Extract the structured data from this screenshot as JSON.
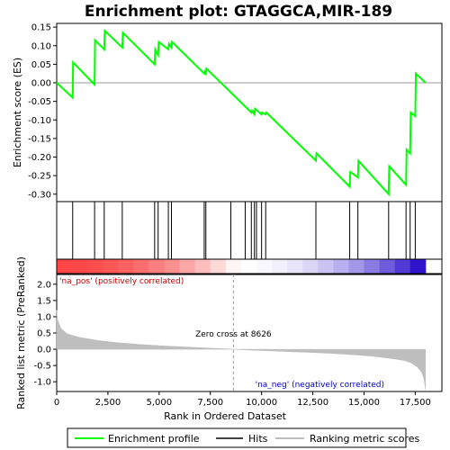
{
  "chart_data": {
    "type": "line",
    "title": "Enrichment plot: GTAGGCA,MIR-189",
    "panels": {
      "enrichment": {
        "ylabel": "Enrichment score (ES)",
        "ylim": [
          -0.32,
          0.16
        ],
        "yticks": [
          "0.15",
          "0.10",
          "0.05",
          "0.00",
          "-0.05",
          "-0.10",
          "-0.15",
          "-0.20",
          "-0.25",
          "-0.30"
        ],
        "ytick_values": [
          0.15,
          0.1,
          0.05,
          0.0,
          -0.05,
          -0.1,
          -0.15,
          -0.2,
          -0.25,
          -0.3
        ],
        "series": [
          {
            "name": "Enrichment profile",
            "color": "#00ff00",
            "x": [
              0,
              780,
              800,
              1850,
              1870,
              2320,
              2350,
              3200,
              3230,
              4780,
              4810,
              4950,
              4980,
              5450,
              5480,
              5600,
              5630,
              7200,
              7230,
              7280,
              7310,
              9500,
              9530,
              9650,
              9680,
              10000,
              10030,
              10200,
              10230,
              12650,
              12680,
              14300,
              14330,
              14700,
              14730,
              16200,
              16230,
              17050,
              17080,
              17250,
              17280,
              17500,
              17530,
              18000
            ],
            "y": [
              0.0,
              -0.04,
              0.055,
              -0.005,
              0.115,
              0.09,
              0.14,
              0.095,
              0.135,
              0.05,
              0.09,
              0.075,
              0.11,
              0.09,
              0.105,
              0.095,
              0.11,
              0.025,
              0.03,
              0.025,
              0.038,
              -0.08,
              -0.075,
              -0.085,
              -0.07,
              -0.085,
              -0.08,
              -0.085,
              -0.08,
              -0.21,
              -0.19,
              -0.28,
              -0.24,
              -0.255,
              -0.21,
              -0.3,
              -0.225,
              -0.275,
              -0.18,
              -0.19,
              -0.08,
              -0.09,
              0.025,
              0.0
            ]
          }
        ]
      },
      "hits": {
        "legend_label": "Hits",
        "color": "#000000",
        "positions": [
          780,
          1850,
          2320,
          3200,
          4780,
          4950,
          5450,
          5600,
          7200,
          7280,
          8500,
          9200,
          9500,
          9650,
          9750,
          10000,
          10200,
          12650,
          14300,
          14700,
          16200,
          17050,
          17250,
          17500
        ]
      },
      "ranking": {
        "ylabel": "Ranked list metric (PreRanked)",
        "xlabel": "Rank in Ordered Dataset",
        "legend_label": "Ranking metric scores",
        "color": "#bebebe",
        "ylim": [
          -1.3,
          2.3
        ],
        "yticks": [
          "2.0",
          "1.5",
          "1.0",
          "0.5",
          "0.0",
          "-0.5",
          "-1.0"
        ],
        "ytick_values": [
          2.0,
          1.5,
          1.0,
          0.5,
          0.0,
          -0.5,
          -1.0
        ],
        "xlim": [
          0,
          18800
        ],
        "xticks": [
          "0",
          "2,500",
          "5,000",
          "7,500",
          "10,000",
          "12,500",
          "15,000",
          "17,500"
        ],
        "xtick_values": [
          0,
          2500,
          5000,
          7500,
          10000,
          12500,
          15000,
          17500
        ],
        "curve_x": [
          0,
          50,
          200,
          500,
          1000,
          2000,
          3000,
          4000,
          5000,
          6000,
          7000,
          8000,
          8626,
          9500,
          10500,
          11500,
          12500,
          13500,
          14500,
          15500,
          16500,
          17000,
          17300,
          17600,
          17800,
          17900,
          17950,
          18000
        ],
        "curve_y": [
          1.2,
          0.9,
          0.65,
          0.48,
          0.38,
          0.27,
          0.2,
          0.15,
          0.11,
          0.08,
          0.05,
          0.02,
          0.0,
          -0.03,
          -0.05,
          -0.08,
          -0.1,
          -0.13,
          -0.17,
          -0.22,
          -0.3,
          -0.35,
          -0.42,
          -0.55,
          -0.7,
          -0.85,
          -1.0,
          -1.25
        ],
        "zero_cross_rank": 8626,
        "zero_cross_label": "Zero cross at 8626",
        "pos_label": "'na_pos' (positively correlated)",
        "neg_label": "'na_neg' (negatively correlated)",
        "pos_color": "#cc0000",
        "neg_color": "#0000cc"
      }
    },
    "legend": {
      "placement": "bottom",
      "entries": [
        "Enrichment profile",
        "Hits",
        "Ranking metric scores"
      ]
    },
    "dataset_size": 18000
  }
}
